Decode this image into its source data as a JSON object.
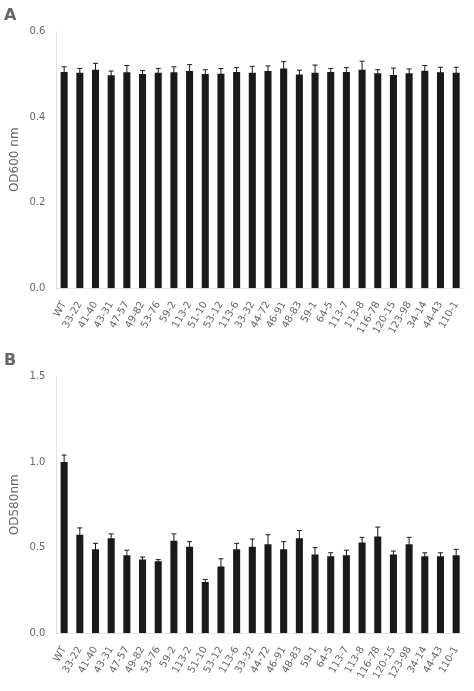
{
  "chart_data": [
    {
      "type": "bar",
      "title": "A",
      "categories": [
        "WT",
        "33-22",
        "41-40",
        "43-31",
        "47-57",
        "49-82",
        "53-76",
        "59-2",
        "113-2",
        "51-10",
        "53-12",
        "113-6",
        "33-32",
        "44-72",
        "46-91",
        "48-83",
        "59-1",
        "64-5",
        "113-7",
        "113-8",
        "116-78",
        "120-15",
        "123-98",
        "34-14",
        "44-43",
        "110-1"
      ],
      "values": [
        0.505,
        0.503,
        0.51,
        0.497,
        0.504,
        0.5,
        0.503,
        0.504,
        0.507,
        0.5,
        0.501,
        0.505,
        0.503,
        0.507,
        0.513,
        0.499,
        0.503,
        0.505,
        0.505,
        0.51,
        0.502,
        0.498,
        0.502,
        0.508,
        0.504,
        0.503
      ],
      "errors": [
        0.012,
        0.01,
        0.015,
        0.01,
        0.016,
        0.008,
        0.01,
        0.013,
        0.015,
        0.01,
        0.012,
        0.01,
        0.015,
        0.012,
        0.016,
        0.01,
        0.018,
        0.008,
        0.01,
        0.02,
        0.008,
        0.016,
        0.01,
        0.012,
        0.012,
        0.013
      ],
      "ylabel": "OD600 nm",
      "ylim": [
        0,
        0.6
      ],
      "yticks": [
        {
          "value": 0,
          "label": "0.0"
        },
        0.2,
        0.4,
        0.6
      ],
      "color": "#1a1a1a",
      "grid": false
    },
    {
      "type": "bar",
      "title": "B",
      "categories": [
        "WT",
        "33-22",
        "41-40",
        "43-31",
        "47-57",
        "49-82",
        "53-76",
        "59-2",
        "113-2",
        "51-10",
        "53-12",
        "113-6",
        "33-32",
        "44-72",
        "46-91",
        "48-83",
        "59-1",
        "64-5",
        "113-7",
        "113-8",
        "116-78",
        "120-15",
        "123-98",
        "34-14",
        "44-43",
        "110-1"
      ],
      "values": [
        1.0,
        0.575,
        0.49,
        0.555,
        0.455,
        0.43,
        0.42,
        0.54,
        0.505,
        0.3,
        0.39,
        0.49,
        0.505,
        0.52,
        0.49,
        0.555,
        0.46,
        0.45,
        0.455,
        0.53,
        0.565,
        0.46,
        0.52,
        0.45,
        0.45,
        0.455
      ],
      "errors": [
        0.04,
        0.04,
        0.035,
        0.025,
        0.03,
        0.015,
        0.01,
        0.04,
        0.03,
        0.015,
        0.045,
        0.035,
        0.045,
        0.055,
        0.045,
        0.045,
        0.04,
        0.02,
        0.03,
        0.03,
        0.055,
        0.02,
        0.04,
        0.02,
        0.02,
        0.035
      ],
      "ylabel": "OD580nm",
      "ylim": [
        0,
        1.5
      ],
      "yticks": [
        {
          "value": 0,
          "label": "0.0"
        },
        0.5,
        {
          "value": 1,
          "label": "1.0"
        },
        1.5
      ],
      "color": "#1a1a1a",
      "grid": false
    }
  ]
}
